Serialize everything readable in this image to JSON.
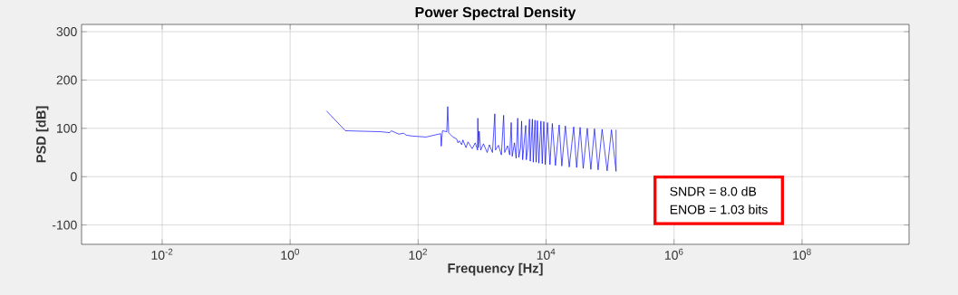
{
  "chart_data": {
    "type": "line",
    "title": "Power Spectral Density",
    "xlabel": "Frequency [Hz]",
    "ylabel": "PSD [dB]",
    "log": "x",
    "grid": true,
    "marker": "none",
    "line_style": "solid",
    "xlim": [
      0.00055,
      4700000000
    ],
    "ylim": [
      -140,
      315
    ],
    "xticks": [
      {
        "value": 0.01,
        "label": "10$^{-2}$"
      },
      {
        "value": 1,
        "label": "10$^{0}$"
      },
      {
        "value": 100,
        "label": "10$^{2}$"
      },
      {
        "value": 10000,
        "label": "10$^{4}$"
      },
      {
        "value": 1000000,
        "label": "10$^{6}$"
      },
      {
        "value": 100000000,
        "label": "10$^{8}$"
      }
    ],
    "yticks": [
      -100,
      0,
      100,
      200,
      300
    ],
    "annotations": [
      "SNDR =  8.0 dB",
      "ENOB = 1.03 bits"
    ],
    "series": [
      {
        "color": "#0000ff",
        "x": [
          3.7,
          7.3,
          26,
          36,
          38,
          50,
          59,
          65,
          81,
          133,
          225,
          230,
          240,
          280,
          290,
          300,
          350,
          400,
          420,
          440,
          480,
          500,
          560,
          600,
          700,
          780,
          850,
          857,
          870,
          900,
          950,
          1050,
          1200,
          1300,
          1450,
          1580,
          1620,
          1800,
          2000,
          2170,
          2250,
          2500,
          2700,
          2850,
          2950,
          3200,
          3400,
          3600,
          3750,
          4000,
          4140,
          4300,
          4800,
          4900,
          5200,
          5500,
          5650,
          6100,
          6300,
          6700,
          7000,
          7300,
          7700,
          8300,
          8700,
          9200,
          9700,
          10500,
          11500,
          12500,
          14000,
          16000,
          17600,
          20000,
          23000,
          27000,
          30000,
          34000,
          38000,
          44000,
          50000,
          57000,
          65000,
          75000,
          90000,
          105000,
          124000,
          124000
        ],
        "values": [
          136,
          95,
          93,
          91,
          95,
          88,
          90,
          86,
          84,
          82,
          89,
          63,
          95,
          93,
          145,
          91,
          82,
          78,
          70,
          74,
          66,
          76,
          60,
          72,
          58,
          70,
          55,
          121,
          60,
          94,
          55,
          68,
          50,
          66,
          50,
          130,
          55,
          65,
          45,
          127,
          50,
          64,
          45,
          112,
          42,
          70,
          38,
          121,
          40,
          60,
          115,
          35,
          106,
          35,
          60,
          119,
          32,
          119,
          30,
          117,
          30,
          116,
          28,
          115,
          27,
          114,
          25,
          112,
          25,
          110,
          23,
          107,
          22,
          105,
          20,
          103,
          19,
          102,
          17,
          100,
          15,
          99,
          14,
          98,
          12,
          97,
          11,
          97
        ]
      }
    ]
  }
}
